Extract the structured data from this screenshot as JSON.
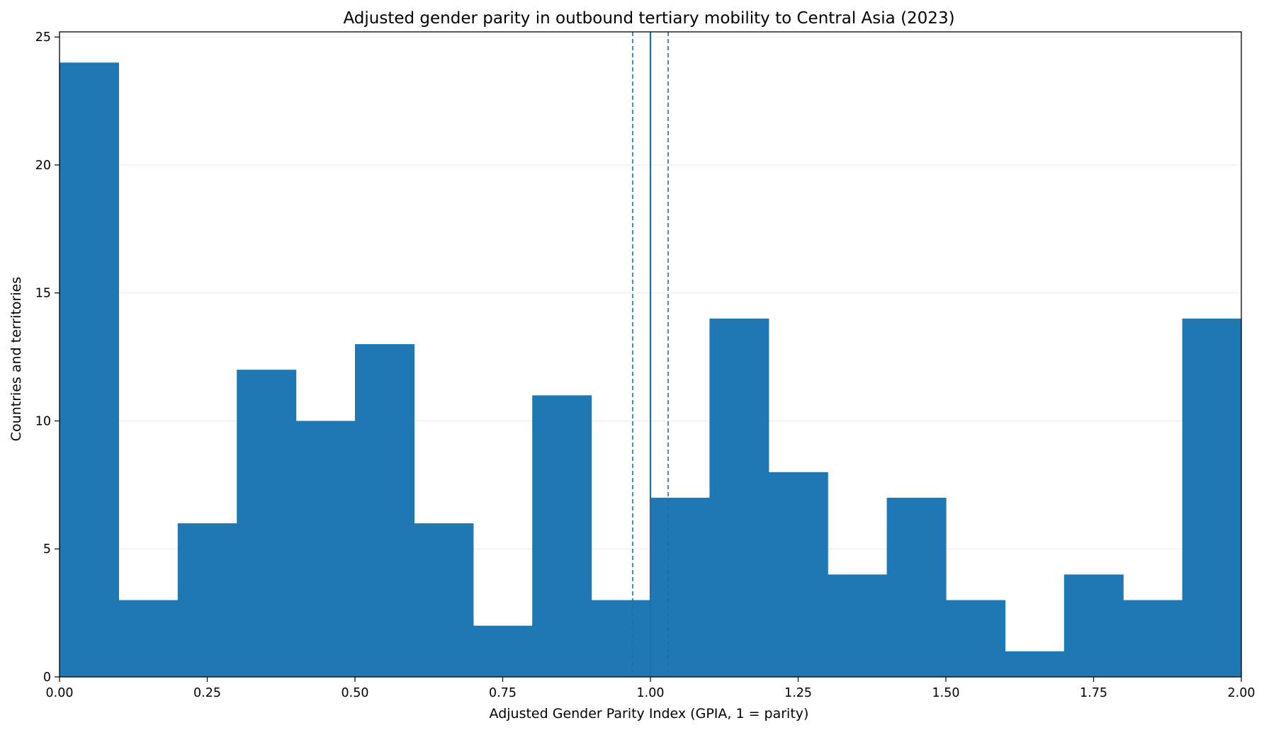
{
  "chart_data": {
    "type": "bar",
    "title": "Adjusted gender parity in outbound tertiary mobility to Central Asia (2023)",
    "xlabel": "Adjusted Gender Parity Index (GPIA, 1 = parity)",
    "ylabel": "Countries and territories",
    "xlim": [
      0,
      2
    ],
    "ylim": [
      0,
      25.2
    ],
    "x_ticks": [
      0,
      0.25,
      0.5,
      0.75,
      1.0,
      1.25,
      1.5,
      1.75,
      2.0
    ],
    "x_tick_labels": [
      "0.00",
      "0.25",
      "0.50",
      "0.75",
      "1.00",
      "1.25",
      "1.50",
      "1.75",
      "2.00"
    ],
    "y_ticks": [
      0,
      5,
      10,
      15,
      20,
      25
    ],
    "y_tick_labels": [
      "0",
      "5",
      "10",
      "15",
      "20",
      "25"
    ],
    "bin_edges": [
      0,
      0.1,
      0.2,
      0.3,
      0.4,
      0.5,
      0.6,
      0.7,
      0.8,
      0.9,
      1.0,
      1.1,
      1.2,
      1.3,
      1.4,
      1.5,
      1.6,
      1.7,
      1.8,
      1.9,
      2.0
    ],
    "counts": [
      24,
      3,
      6,
      12,
      10,
      13,
      6,
      2,
      11,
      3,
      7,
      14,
      8,
      4,
      7,
      3,
      1,
      4,
      3,
      14
    ],
    "reference_lines": [
      {
        "x": 1.0,
        "style": "solid"
      },
      {
        "x": 0.97,
        "style": "dashed"
      },
      {
        "x": 1.03,
        "style": "dashed"
      }
    ],
    "grid": {
      "y": true,
      "x": false
    },
    "colors": {
      "bar": "#1f77b4",
      "reference": "#1f6fa8",
      "grid": "#ebebeb",
      "axis": "#000000"
    }
  }
}
